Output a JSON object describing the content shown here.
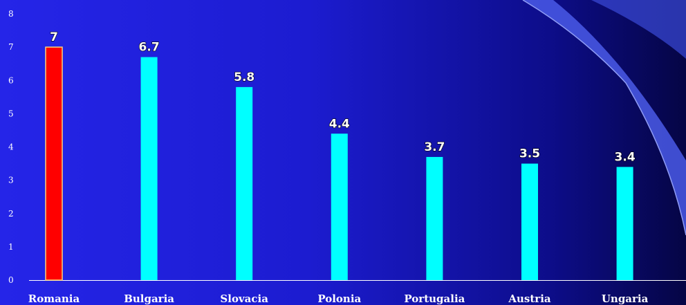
{
  "chart_data": {
    "type": "bar",
    "categories": [
      "Romania",
      "Bulgaria",
      "Slovacia",
      "Polonia",
      "Portugalia",
      "Austria",
      "Ungaria"
    ],
    "values": [
      7,
      6.7,
      5.8,
      4.4,
      3.7,
      3.5,
      3.4
    ],
    "data_labels": [
      "7",
      "6.7",
      "5.8",
      "4.4",
      "3.7",
      "3.5",
      "3.4"
    ],
    "ylim": [
      0,
      8
    ],
    "yticks": [
      0,
      1,
      2,
      3,
      4,
      5,
      6,
      7,
      8
    ],
    "title": "",
    "xlabel": "",
    "ylabel": "",
    "grid": false,
    "legend": "none",
    "highlight_index": 0,
    "colors": {
      "highlight_bar": "#ff0000",
      "highlight_border": "#ffd27a",
      "bar": "#00ffff",
      "axis": "#ffffff",
      "text": "#ffffff"
    }
  }
}
